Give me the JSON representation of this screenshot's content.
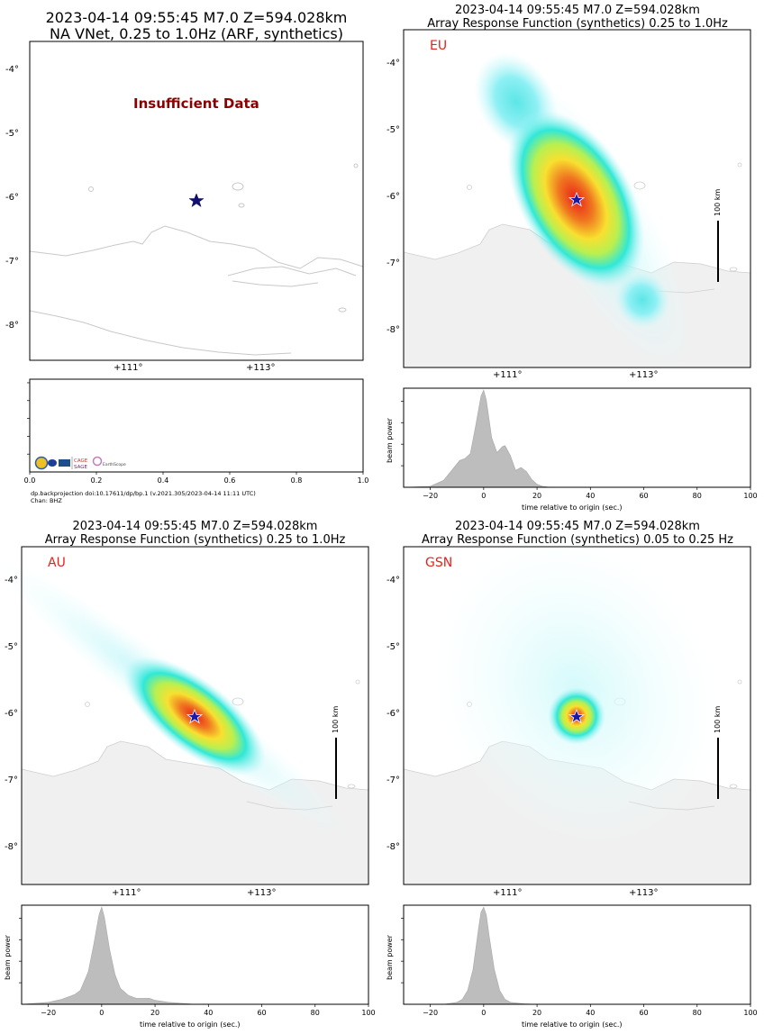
{
  "panels": [
    {
      "id": "na",
      "title_line1": "2023-04-14 09:55:45 M7.0 Z=594.028km",
      "title_line2": "NA VNet, 0.25 to 1.0Hz (ARF, synthetics)",
      "message": "Insufficient Data",
      "lat_ticks": [
        "-4°",
        "-5°",
        "-6°",
        "-7°",
        "-8°"
      ],
      "lon_ticks": [
        "+111°",
        "+113°"
      ],
      "footer_line1": "dp.backprojection doi:10.17611/dp/bp.1 (v.2021.305/2023-04-14 11:11 UTC)",
      "footer_line2": "Chan: BHZ",
      "logos": [
        "NSF",
        "CAGE",
        "SAGE",
        "EarthScope"
      ]
    },
    {
      "id": "eu",
      "title_line1": "2023-04-14 09:55:45 M7.0 Z=594.028km",
      "title_line2": "Array Response Function (synthetics) 0.25 to 1.0Hz",
      "network": "EU",
      "scale_label": "100 km",
      "lat_ticks": [
        "-4°",
        "-5°",
        "-6°",
        "-7°",
        "-8°"
      ],
      "lon_ticks": [
        "+111°",
        "+113°"
      ],
      "ylabel": "beam power",
      "xlabel": "time relative to origin (sec.)"
    },
    {
      "id": "au",
      "title_line1": "2023-04-14 09:55:45 M7.0 Z=594.028km",
      "title_line2": "Array Response Function (synthetics) 0.25 to 1.0Hz",
      "network": "AU",
      "scale_label": "100 km",
      "lat_ticks": [
        "-4°",
        "-5°",
        "-6°",
        "-7°",
        "-8°"
      ],
      "lon_ticks": [
        "+111°",
        "+113°"
      ],
      "ylabel": "beam power",
      "xlabel": "time relative to origin (sec.)"
    },
    {
      "id": "gsn",
      "title_line1": "2023-04-14 09:55:45 M7.0 Z=594.028km",
      "title_line2": "Array Response Function (synthetics) 0.05 to 0.25 Hz",
      "network": "GSN",
      "scale_label": "100 km",
      "lat_ticks": [
        "-4°",
        "-5°",
        "-6°",
        "-7°",
        "-8°"
      ],
      "lon_ticks": [
        "+111°",
        "+113°"
      ],
      "ylabel": "beam power",
      "xlabel": "time relative to origin (sec.)"
    }
  ],
  "chart_data": [
    {
      "type": "area",
      "panel": "na",
      "x_ticks": [
        "0.0",
        "0.2",
        "0.4",
        "0.6",
        "0.8",
        "1.0"
      ],
      "xlim": [
        0,
        1
      ],
      "x": [],
      "y": []
    },
    {
      "type": "area",
      "panel": "eu",
      "x_ticks": [
        "−20",
        "0",
        "20",
        "40",
        "60",
        "80",
        "100"
      ],
      "xlim": [
        -30,
        100
      ],
      "ylim": [
        0,
        1
      ],
      "x": [
        -30,
        -20,
        -15,
        -12,
        -9,
        -7,
        -5,
        -3,
        -1,
        0,
        1,
        3,
        5,
        7,
        8,
        10,
        12,
        14,
        16,
        18,
        20,
        22,
        25,
        30,
        100
      ],
      "y": [
        0,
        0.01,
        0.07,
        0.17,
        0.27,
        0.29,
        0.34,
        0.62,
        0.92,
        0.98,
        0.88,
        0.5,
        0.35,
        0.41,
        0.42,
        0.32,
        0.17,
        0.2,
        0.16,
        0.08,
        0.03,
        0.01,
        0,
        0,
        0
      ]
    },
    {
      "type": "area",
      "panel": "au",
      "x_ticks": [
        "−20",
        "0",
        "20",
        "40",
        "60",
        "80",
        "100"
      ],
      "xlim": [
        -30,
        100
      ],
      "ylim": [
        0,
        1
      ],
      "x": [
        -30,
        -25,
        -20,
        -15,
        -10,
        -8,
        -5,
        -3,
        -1,
        0,
        1,
        3,
        5,
        7,
        10,
        13,
        15,
        18,
        20,
        25,
        30,
        35,
        40,
        100
      ],
      "y": [
        0,
        0.01,
        0.02,
        0.05,
        0.1,
        0.14,
        0.33,
        0.6,
        0.9,
        0.98,
        0.88,
        0.55,
        0.3,
        0.16,
        0.09,
        0.06,
        0.06,
        0.06,
        0.04,
        0.02,
        0.01,
        0,
        0,
        0
      ]
    },
    {
      "type": "area",
      "panel": "gsn",
      "x_ticks": [
        "−20",
        "0",
        "20",
        "40",
        "60",
        "80",
        "100"
      ],
      "xlim": [
        -30,
        100
      ],
      "ylim": [
        0,
        1
      ],
      "x": [
        -30,
        -15,
        -10,
        -8,
        -6,
        -4,
        -2,
        -1,
        0,
        1,
        2,
        4,
        6,
        8,
        10,
        15,
        20,
        30,
        100
      ],
      "y": [
        0,
        0,
        0.02,
        0.05,
        0.14,
        0.35,
        0.75,
        0.93,
        0.98,
        0.9,
        0.7,
        0.35,
        0.14,
        0.05,
        0.02,
        0.005,
        0,
        0,
        0
      ]
    }
  ]
}
